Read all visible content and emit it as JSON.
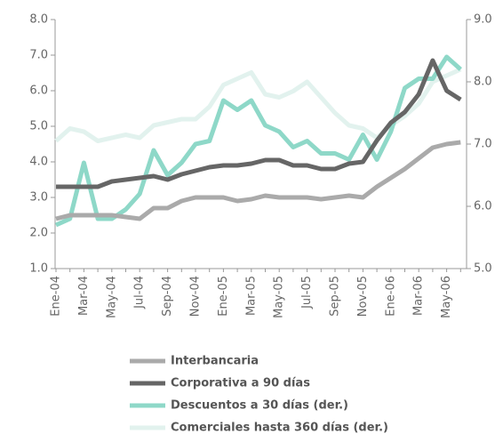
{
  "chart_data": {
    "type": "line",
    "categories": [
      "Ene-04",
      null,
      "Mar-04",
      null,
      "May-04",
      null,
      "Jul-04",
      null,
      "Sep-04",
      null,
      "Nov-04",
      null,
      "Ene-05",
      null,
      "Mar-05",
      null,
      "May-05",
      null,
      "Jul-05",
      null,
      "Sep-05",
      null,
      "Nov-05",
      null,
      "Ene-06",
      null,
      "Mar-06",
      null,
      "May-06",
      null
    ],
    "ylim": [
      1,
      8
    ],
    "yticks": [
      {
        "value": 1,
        "label": "1.0"
      },
      {
        "value": 2,
        "label": "2.0"
      },
      {
        "value": 3,
        "label": "3.0"
      },
      {
        "value": 4,
        "label": "4.0"
      },
      {
        "value": 5,
        "label": "5.0"
      },
      {
        "value": 6,
        "label": "6.0"
      },
      {
        "value": 7,
        "label": "7.0"
      },
      {
        "value": 8,
        "label": "8.0"
      }
    ],
    "y2lim": [
      5,
      9
    ],
    "y2ticks": [
      {
        "value": 5,
        "label": "5.0"
      },
      {
        "value": 6,
        "label": "6.0"
      },
      {
        "value": 7,
        "label": "7.0"
      },
      {
        "value": 8,
        "label": "8.0"
      },
      {
        "value": 9,
        "label": "9.0"
      }
    ],
    "series": [
      {
        "name": "Interbancaria",
        "color": "#aaaaaa",
        "values": [
          2.4,
          2.5,
          2.5,
          2.5,
          2.5,
          2.45,
          2.4,
          2.7,
          2.7,
          2.9,
          3.0,
          3.0,
          3.0,
          2.9,
          2.95,
          3.05,
          3.0,
          3.0,
          3.0,
          2.95,
          3.0,
          3.05,
          3.0,
          3.3,
          3.55,
          3.8,
          4.1,
          4.4,
          4.5,
          4.55
        ]
      },
      {
        "name": "Corporativa a 90 días",
        "color": "#666666",
        "values": [
          3.3,
          3.3,
          3.3,
          3.3,
          3.45,
          3.5,
          3.55,
          3.6,
          3.5,
          3.65,
          3.75,
          3.85,
          3.9,
          3.9,
          3.95,
          4.05,
          4.05,
          3.9,
          3.9,
          3.8,
          3.8,
          3.95,
          4.0,
          4.6,
          5.1,
          5.4,
          5.9,
          6.85,
          6.0,
          5.75
        ]
      },
      {
        "name": "Descuentos a 30 días (der.)",
        "color": "#8ed8c8",
        "axis": "y2",
        "values": [
          5.7,
          5.8,
          6.7,
          5.8,
          5.8,
          5.95,
          6.2,
          6.9,
          6.5,
          6.7,
          7.0,
          7.05,
          7.7,
          7.55,
          7.7,
          7.3,
          7.2,
          6.95,
          7.05,
          6.85,
          6.85,
          6.75,
          7.15,
          6.75,
          7.2,
          7.9,
          8.05,
          8.05,
          8.4,
          8.2
        ]
      },
      {
        "name": "Comerciales hasta 360 días (der.)",
        "color": "#e2f2ee",
        "axis": "y2",
        "values": [
          7.05,
          7.25,
          7.2,
          7.05,
          7.1,
          7.15,
          7.1,
          7.3,
          7.35,
          7.4,
          7.4,
          7.6,
          7.95,
          8.05,
          8.15,
          7.8,
          7.75,
          7.85,
          8.0,
          7.75,
          7.5,
          7.3,
          7.25,
          7.1,
          7.3,
          7.45,
          7.65,
          8.0,
          8.1,
          8.2
        ]
      }
    ]
  }
}
